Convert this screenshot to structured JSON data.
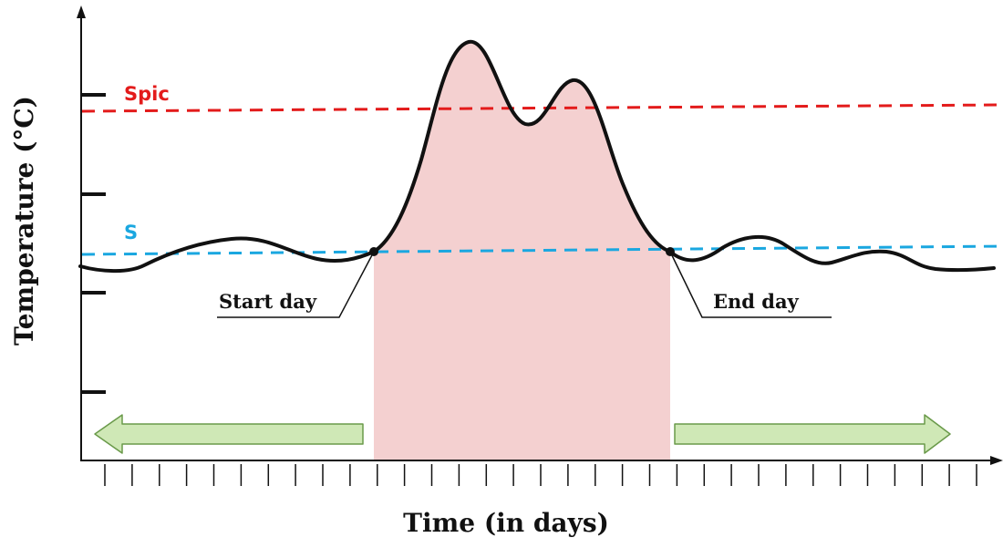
{
  "diagram": {
    "x_axis_title": "Time (in days)",
    "y_axis_title": "Temperature (°C)",
    "threshold_upper": {
      "label": "Spic",
      "color": "#e31b1b"
    },
    "threshold_lower": {
      "label": "S",
      "color": "#1aa7e0"
    },
    "start_label": "Start day",
    "end_label": "End day",
    "colors": {
      "curve": "#111111",
      "event_fill": "#f4d0d0",
      "arrow_fill": "#cfe8b6",
      "arrow_stroke": "#6a9a4a"
    }
  }
}
